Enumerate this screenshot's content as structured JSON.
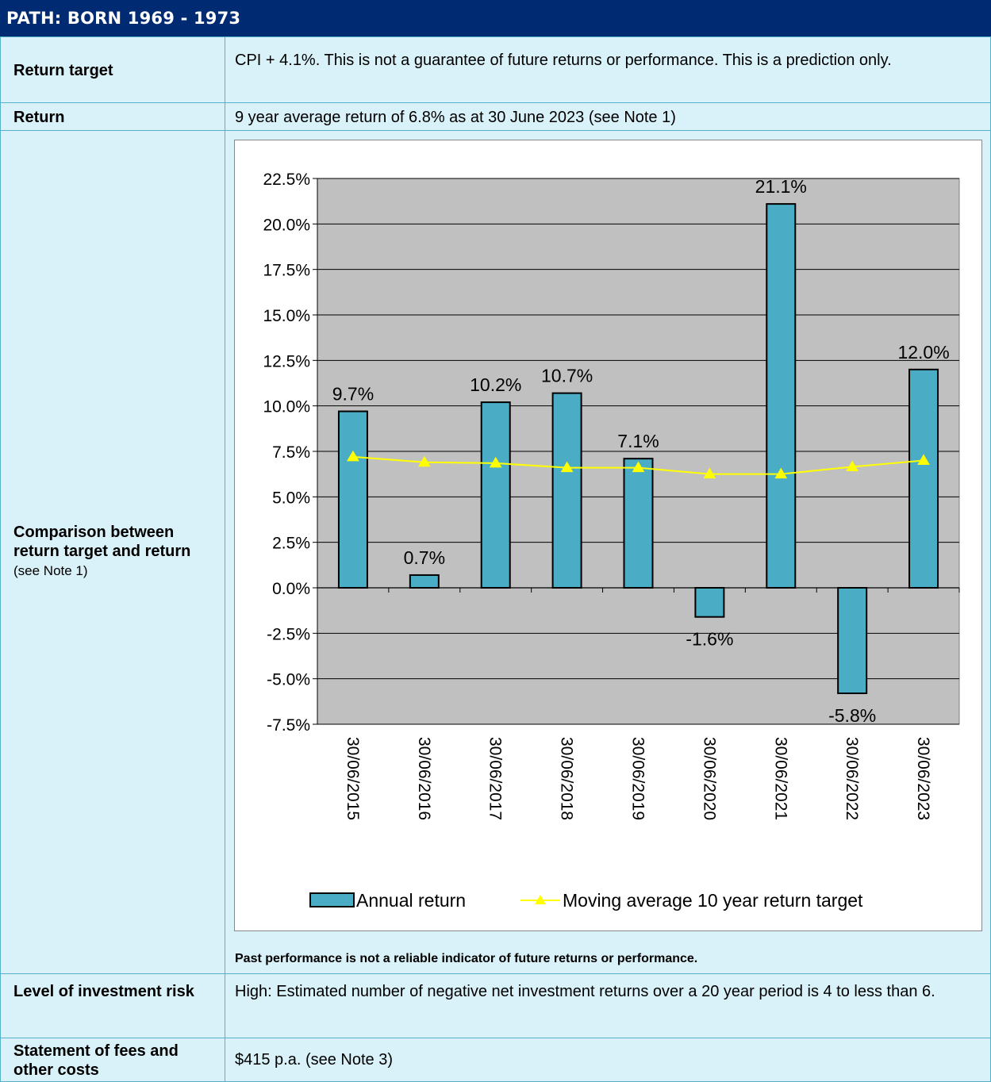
{
  "header": {
    "title": "PATH: BORN 1969 - 1973"
  },
  "rows": {
    "return_target": {
      "label": "Return target",
      "value": "CPI + 4.1%. This is not a guarantee of future returns or performance. This is a prediction only."
    },
    "return": {
      "label": "Return",
      "value": "9 year average return of 6.8% as at 30 June 2023 (see Note 1)"
    },
    "comparison": {
      "label": "Comparison between return target and return",
      "label_note": "(see Note 1)",
      "footnote": "Past performance is not a reliable indicator of future returns or performance."
    },
    "risk": {
      "label": "Level of investment risk",
      "value": "High: Estimated number of negative net investment returns over a 20 year period is 4 to less than 6."
    },
    "fees": {
      "label": "Statement of fees and other costs",
      "value": "$415 p.a. (see Note 3)"
    }
  },
  "colors": {
    "header_bg": "#002b73",
    "cell_bg": "#d9f1f8",
    "cell_border": "#55b1ca",
    "bar": "#4bacc6",
    "line": "#ffff00",
    "plot_bg": "#c0c0c0"
  },
  "chart_data": {
    "type": "bar",
    "categories": [
      "30/06/2015",
      "30/06/2016",
      "30/06/2017",
      "30/06/2018",
      "30/06/2019",
      "30/06/2020",
      "30/06/2021",
      "30/06/2022",
      "30/06/2023"
    ],
    "series": [
      {
        "name": "Annual return",
        "type": "bar",
        "values": [
          9.7,
          0.7,
          10.2,
          10.7,
          7.1,
          -1.6,
          21.1,
          -5.8,
          12.0
        ],
        "labels": [
          "9.7%",
          "0.7%",
          "10.2%",
          "10.7%",
          "7.1%",
          "-1.6%",
          "21.1%",
          "-5.8%",
          "12.0%"
        ]
      },
      {
        "name": "Moving average 10 year return target",
        "type": "line",
        "marker": "triangle",
        "values": [
          7.2,
          6.9,
          6.85,
          6.6,
          6.6,
          6.25,
          6.25,
          6.65,
          7.0
        ]
      }
    ],
    "ylim": [
      -7.5,
      22.5
    ],
    "yticks": [
      "22.5%",
      "20.0%",
      "17.5%",
      "15.0%",
      "12.5%",
      "10.0%",
      "7.5%",
      "5.0%",
      "2.5%",
      "0.0%",
      "-2.5%",
      "-5.0%",
      "-7.5%"
    ],
    "grid": true,
    "legend_position": "bottom"
  }
}
